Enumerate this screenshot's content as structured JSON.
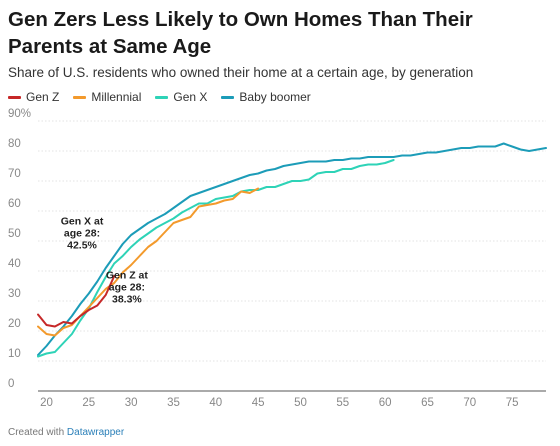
{
  "title": "Gen Zers Less Likely to Own Homes Than Their Parents at Same Age",
  "subtitle": "Share of U.S. residents who owned their home at a certain age, by generation",
  "footer": {
    "prefix": "Created with ",
    "brand": "Datawrapper"
  },
  "colors": {
    "gen_z": "#c62828",
    "millennial": "#f39a2c",
    "gen_x": "#2ed3b7",
    "baby_boomer": "#1c9cb8",
    "grid": "#e3e3e3",
    "baseline": "#555555"
  },
  "chart_data": {
    "type": "line",
    "xlim": [
      19,
      79
    ],
    "ylim": [
      0,
      90
    ],
    "x_ticks": [
      20,
      25,
      30,
      35,
      40,
      45,
      50,
      55,
      60,
      65,
      70,
      75
    ],
    "y_ticks": [
      {
        "v": 0,
        "label": "0"
      },
      {
        "v": 10,
        "label": "10"
      },
      {
        "v": 20,
        "label": "20"
      },
      {
        "v": 30,
        "label": "30"
      },
      {
        "v": 40,
        "label": "40"
      },
      {
        "v": 50,
        "label": "50"
      },
      {
        "v": 60,
        "label": "60"
      },
      {
        "v": 70,
        "label": "70"
      },
      {
        "v": 80,
        "label": "80"
      },
      {
        "v": 90,
        "label": "90%"
      }
    ],
    "grid": true,
    "legend_position": "top-left",
    "series": [
      {
        "name": "Gen Z",
        "key": "gen_z",
        "points": [
          [
            19,
            25.5
          ],
          [
            20,
            22
          ],
          [
            21,
            21.5
          ],
          [
            22,
            23
          ],
          [
            23,
            22.5
          ],
          [
            24,
            25
          ],
          [
            25,
            27
          ],
          [
            26,
            28.5
          ],
          [
            27,
            32
          ],
          [
            28,
            38.3
          ]
        ]
      },
      {
        "name": "Millennial",
        "key": "millennial",
        "points": [
          [
            19,
            21.5
          ],
          [
            20,
            19
          ],
          [
            21,
            18.5
          ],
          [
            22,
            21
          ],
          [
            23,
            22
          ],
          [
            24,
            25
          ],
          [
            25,
            28
          ],
          [
            26,
            31
          ],
          [
            27,
            34
          ],
          [
            28,
            36
          ],
          [
            29,
            39.5
          ],
          [
            30,
            42
          ],
          [
            31,
            45
          ],
          [
            32,
            48
          ],
          [
            33,
            50
          ],
          [
            34,
            53
          ],
          [
            35,
            56
          ],
          [
            36,
            57
          ],
          [
            37,
            58
          ],
          [
            38,
            61.5
          ],
          [
            39,
            62
          ],
          [
            40,
            62.5
          ],
          [
            41,
            63.5
          ],
          [
            42,
            64
          ],
          [
            43,
            66.5
          ],
          [
            44,
            66
          ],
          [
            45,
            67.5
          ]
        ]
      },
      {
        "name": "Gen X",
        "key": "gen_x",
        "points": [
          [
            19,
            11.5
          ],
          [
            20,
            12.5
          ],
          [
            21,
            13
          ],
          [
            22,
            16
          ],
          [
            23,
            19
          ],
          [
            24,
            23.5
          ],
          [
            25,
            27.5
          ],
          [
            26,
            33
          ],
          [
            27,
            38
          ],
          [
            28,
            42.5
          ],
          [
            29,
            45
          ],
          [
            30,
            48
          ],
          [
            31,
            50.5
          ],
          [
            32,
            52.5
          ],
          [
            33,
            54.5
          ],
          [
            34,
            56
          ],
          [
            35,
            57.5
          ],
          [
            36,
            59.5
          ],
          [
            37,
            61
          ],
          [
            38,
            62.5
          ],
          [
            39,
            62.5
          ],
          [
            40,
            64
          ],
          [
            41,
            64.5
          ],
          [
            42,
            65
          ],
          [
            43,
            66.5
          ],
          [
            44,
            67
          ],
          [
            45,
            67
          ],
          [
            46,
            68
          ],
          [
            47,
            68
          ],
          [
            48,
            69
          ],
          [
            49,
            70
          ],
          [
            50,
            70
          ],
          [
            51,
            70.5
          ],
          [
            52,
            72.5
          ],
          [
            53,
            73
          ],
          [
            54,
            73
          ],
          [
            55,
            74
          ],
          [
            56,
            74
          ],
          [
            57,
            75
          ],
          [
            58,
            75.5
          ],
          [
            59,
            75.5
          ],
          [
            60,
            76
          ],
          [
            61,
            77
          ]
        ]
      },
      {
        "name": "Baby boomer",
        "key": "baby_boomer",
        "points": [
          [
            19,
            12
          ],
          [
            20,
            15
          ],
          [
            21,
            18.5
          ],
          [
            22,
            21.5
          ],
          [
            23,
            25
          ],
          [
            24,
            29
          ],
          [
            25,
            32.5
          ],
          [
            26,
            36.5
          ],
          [
            27,
            41
          ],
          [
            28,
            45
          ],
          [
            29,
            49
          ],
          [
            30,
            52
          ],
          [
            31,
            54
          ],
          [
            32,
            56
          ],
          [
            33,
            57.5
          ],
          [
            34,
            59
          ],
          [
            35,
            61
          ],
          [
            36,
            63
          ],
          [
            37,
            65
          ],
          [
            38,
            66
          ],
          [
            39,
            67
          ],
          [
            40,
            68
          ],
          [
            41,
            69
          ],
          [
            42,
            70
          ],
          [
            43,
            71
          ],
          [
            44,
            72
          ],
          [
            45,
            72.5
          ],
          [
            46,
            73.5
          ],
          [
            47,
            74
          ],
          [
            48,
            75
          ],
          [
            49,
            75.5
          ],
          [
            50,
            76
          ],
          [
            51,
            76.5
          ],
          [
            52,
            76.5
          ],
          [
            53,
            76.5
          ],
          [
            54,
            77
          ],
          [
            55,
            77
          ],
          [
            56,
            77.5
          ],
          [
            57,
            77.5
          ],
          [
            58,
            78
          ],
          [
            59,
            78
          ],
          [
            60,
            78
          ],
          [
            61,
            78
          ],
          [
            62,
            78.5
          ],
          [
            63,
            78.5
          ],
          [
            64,
            79
          ],
          [
            65,
            79.5
          ],
          [
            66,
            79.5
          ],
          [
            67,
            80
          ],
          [
            68,
            80.5
          ],
          [
            69,
            81
          ],
          [
            70,
            81
          ],
          [
            71,
            81.5
          ],
          [
            72,
            81.5
          ],
          [
            73,
            81.5
          ],
          [
            74,
            82.5
          ],
          [
            75,
            81.5
          ],
          [
            76,
            80.5
          ],
          [
            77,
            80
          ],
          [
            78,
            80.5
          ],
          [
            79,
            81
          ]
        ]
      }
    ],
    "annotations": [
      {
        "lines": [
          "Gen X at",
          "age 28:",
          "42.5%"
        ],
        "anchor_x": 24.2,
        "anchor_y": 55.5,
        "align": "middle"
      },
      {
        "lines": [
          "Gen Z at",
          "age 28:",
          "38.3%"
        ],
        "anchor_x": 29.5,
        "anchor_y": 37.5,
        "align": "middle"
      }
    ]
  }
}
